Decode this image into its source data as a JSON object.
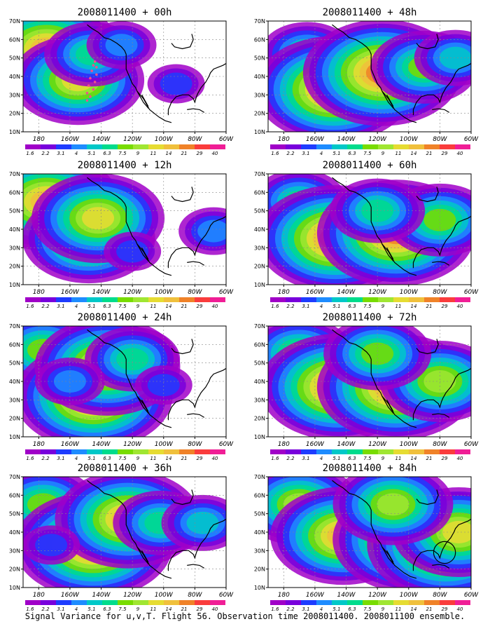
{
  "figure": {
    "caption": "Signal Variance for u,v,T. Flight 56. Observation time 2008011400. 2008011100 ensemble."
  },
  "colorbar": {
    "labels": [
      "1.6",
      "2.2",
      "3.1",
      "4",
      "5.1",
      "6.3",
      "7.5",
      "9",
      "11",
      "14",
      "21",
      "29",
      "40"
    ],
    "colors": [
      "#a000c8",
      "#7800dc",
      "#1e3cff",
      "#1e8cff",
      "#00c8c8",
      "#00dc8c",
      "#78dc00",
      "#a0e632",
      "#e6dc32",
      "#f0c03c",
      "#f08228",
      "#fa3c3c",
      "#f01e96"
    ]
  },
  "axes": {
    "x_ticks": [
      "180",
      "160W",
      "140W",
      "120W",
      "100W",
      "80W",
      "60W"
    ],
    "y_ticks": [
      "10N",
      "20N",
      "30N",
      "40N",
      "50N",
      "60N",
      "70N"
    ],
    "lon_range": [
      170,
      300
    ],
    "lat_range": [
      10,
      70
    ]
  },
  "chart_data": [
    {
      "type": "heatmap",
      "title": "2008011400 + 00h",
      "lead_hours": 0,
      "features": [
        {
          "lon": 185,
          "lat": 55,
          "level": 9
        },
        {
          "lon": 205,
          "lat": 38,
          "level": 8
        },
        {
          "lon": 214,
          "lat": 52,
          "level": 5
        },
        {
          "lon": 233,
          "lat": 57,
          "level": 3
        },
        {
          "lon": 268,
          "lat": 36,
          "level": 2
        }
      ],
      "flight_track": [
        [
          211,
          27
        ],
        [
          211,
          31
        ],
        [
          212,
          35
        ],
        [
          213,
          39
        ],
        [
          214,
          43
        ],
        [
          215,
          46
        ],
        [
          216,
          48
        ],
        [
          217,
          45
        ],
        [
          217,
          41
        ],
        [
          216,
          37
        ],
        [
          215,
          33
        ],
        [
          213,
          29
        ]
      ]
    },
    {
      "type": "heatmap",
      "title": "2008011400 + 12h",
      "lead_hours": 12,
      "features": [
        {
          "lon": 185,
          "lat": 55,
          "level": 9
        },
        {
          "lon": 212,
          "lat": 35,
          "level": 8
        },
        {
          "lon": 218,
          "lat": 46,
          "level": 8
        },
        {
          "lon": 240,
          "lat": 28,
          "level": 2
        },
        {
          "lon": 292,
          "lat": 39,
          "level": 3
        }
      ]
    },
    {
      "type": "heatmap",
      "title": "2008011400 + 24h",
      "lead_hours": 24,
      "features": [
        {
          "lon": 183,
          "lat": 57,
          "level": 6
        },
        {
          "lon": 215,
          "lat": 32,
          "level": 10
        },
        {
          "lon": 224,
          "lat": 48,
          "level": 9
        },
        {
          "lon": 240,
          "lat": 52,
          "level": 5
        },
        {
          "lon": 260,
          "lat": 38,
          "level": 2
        },
        {
          "lon": 200,
          "lat": 40,
          "level": 3
        }
      ]
    },
    {
      "type": "heatmap",
      "title": "2008011400 + 36h",
      "lead_hours": 36,
      "features": [
        {
          "lon": 183,
          "lat": 55,
          "level": 6
        },
        {
          "lon": 215,
          "lat": 33,
          "level": 10
        },
        {
          "lon": 237,
          "lat": 47,
          "level": 9
        },
        {
          "lon": 258,
          "lat": 45,
          "level": 5
        },
        {
          "lon": 285,
          "lat": 45,
          "level": 4
        },
        {
          "lon": 188,
          "lat": 33,
          "level": 2
        }
      ]
    },
    {
      "type": "heatmap",
      "title": "2008011400 + 48h",
      "lead_hours": 48,
      "features": [
        {
          "lon": 195,
          "lat": 52,
          "level": 5
        },
        {
          "lon": 212,
          "lat": 33,
          "level": 10
        },
        {
          "lon": 243,
          "lat": 42,
          "level": 10
        },
        {
          "lon": 270,
          "lat": 45,
          "level": 6
        },
        {
          "lon": 290,
          "lat": 50,
          "level": 4
        }
      ]
    },
    {
      "type": "heatmap",
      "title": "2008011400 + 60h",
      "lead_hours": 60,
      "features": [
        {
          "lon": 190,
          "lat": 55,
          "level": 5
        },
        {
          "lon": 213,
          "lat": 35,
          "level": 10
        },
        {
          "lon": 252,
          "lat": 38,
          "level": 10
        },
        {
          "lon": 280,
          "lat": 45,
          "level": 6
        },
        {
          "lon": 240,
          "lat": 50,
          "level": 5
        }
      ]
    },
    {
      "type": "heatmap",
      "title": "2008011400 + 72h",
      "lead_hours": 72,
      "features": [
        {
          "lon": 190,
          "lat": 55,
          "level": 6
        },
        {
          "lon": 215,
          "lat": 37,
          "level": 10
        },
        {
          "lon": 252,
          "lat": 37,
          "level": 10
        },
        {
          "lon": 280,
          "lat": 40,
          "level": 7
        },
        {
          "lon": 240,
          "lat": 55,
          "level": 6
        }
      ]
    },
    {
      "type": "heatmap",
      "title": "2008011400 + 84h",
      "lead_hours": 84,
      "features": [
        {
          "lon": 190,
          "lat": 55,
          "level": 7
        },
        {
          "lon": 218,
          "lat": 38,
          "level": 9
        },
        {
          "lon": 262,
          "lat": 36,
          "level": 10
        },
        {
          "lon": 284,
          "lat": 33,
          "level": 10
        },
        {
          "lon": 292,
          "lat": 40,
          "level": 8
        },
        {
          "lon": 250,
          "lat": 55,
          "level": 7
        }
      ],
      "circle": {
        "lon": 283,
        "lat": 29,
        "radius_deg": 7
      }
    }
  ]
}
